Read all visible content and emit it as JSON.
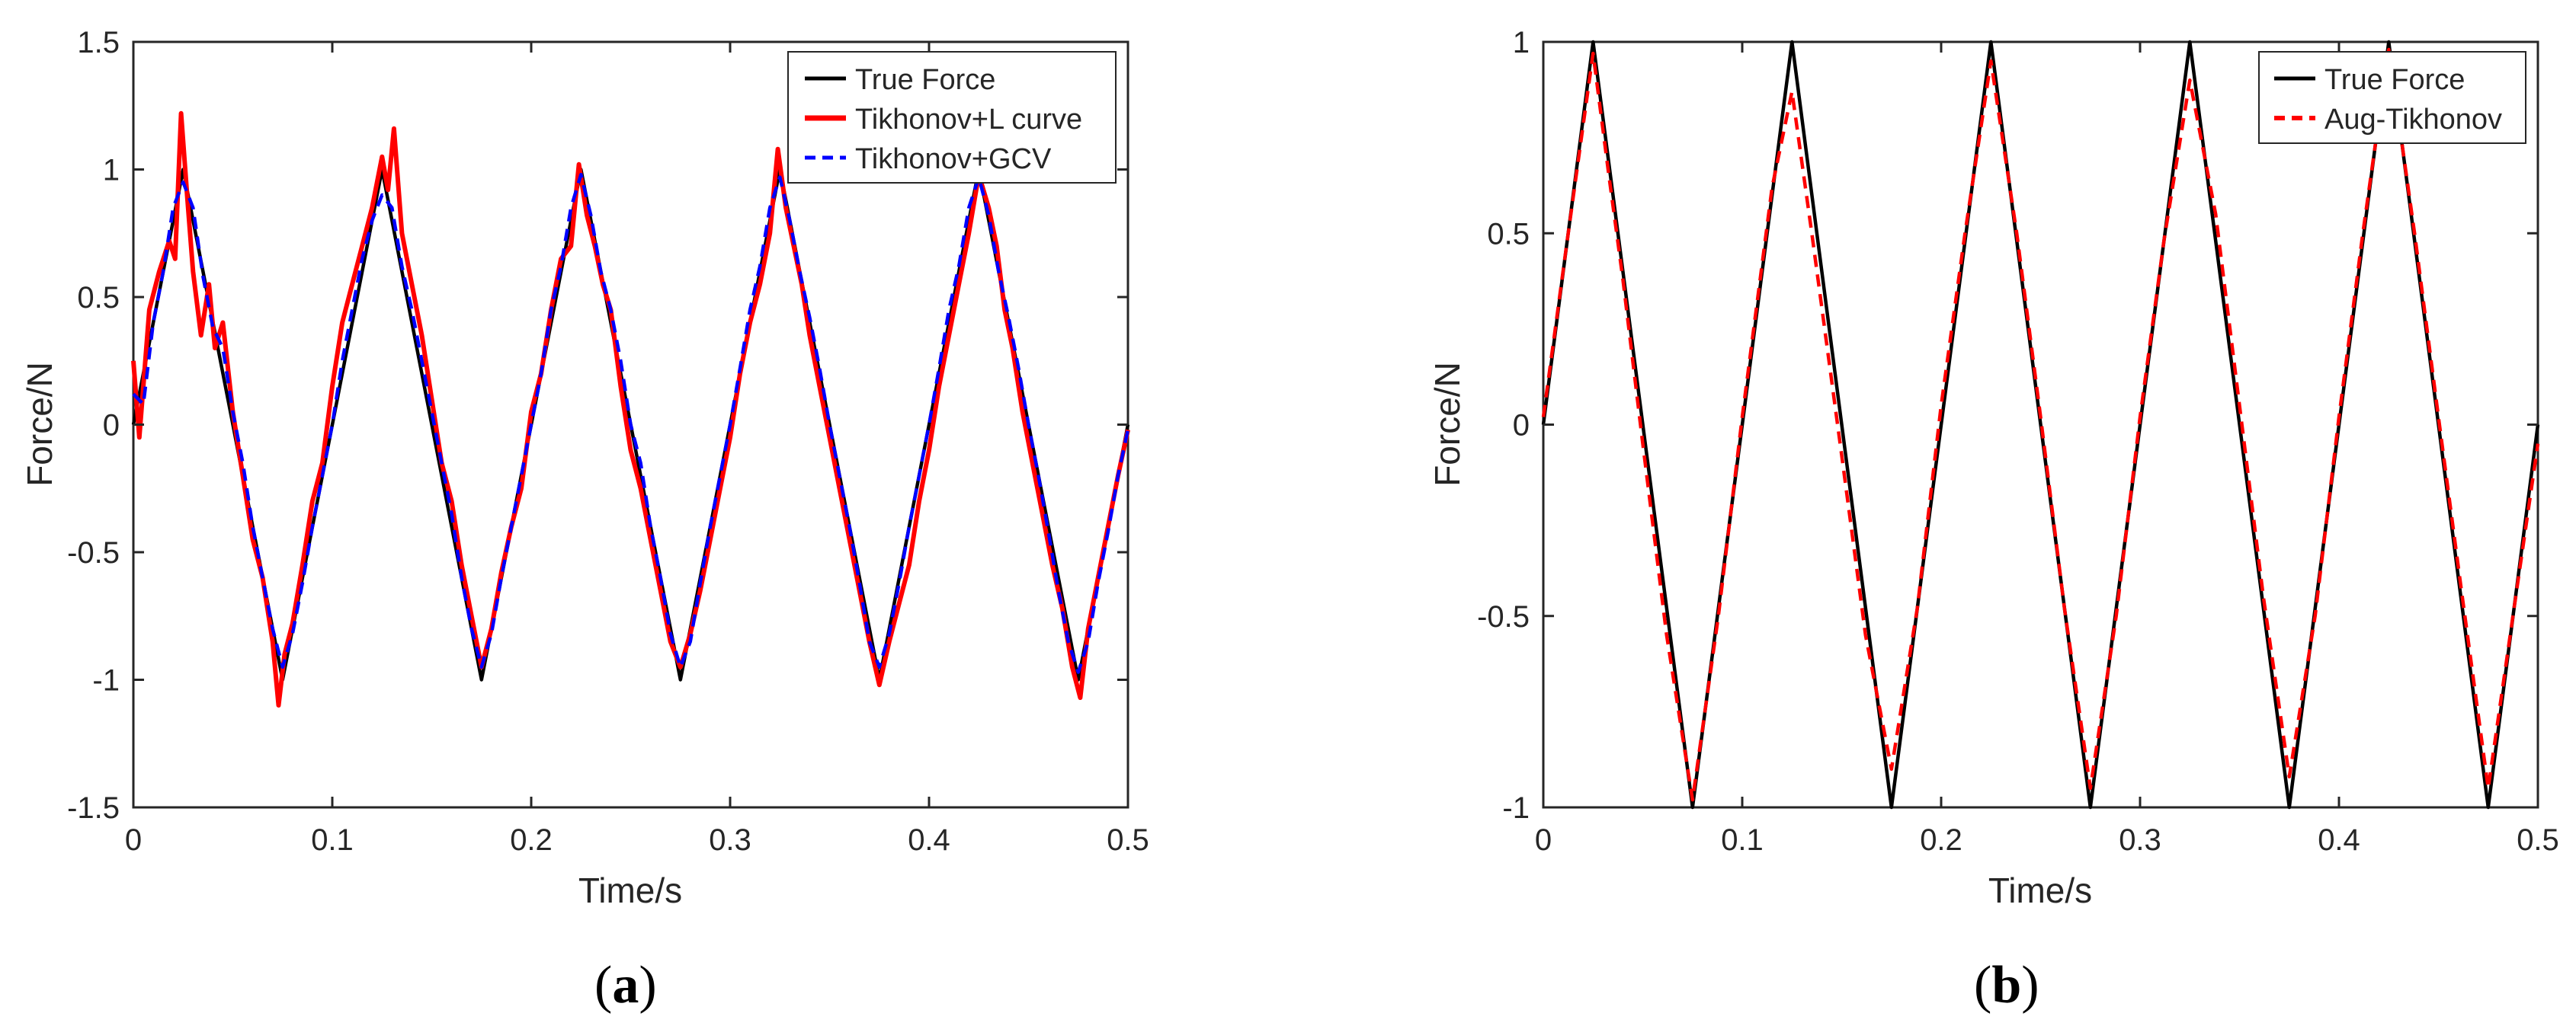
{
  "panels": [
    {
      "caption": "(a)",
      "caption_letter": "a",
      "chart_data": {
        "type": "line",
        "title": "",
        "xlabel": "Time/s",
        "ylabel": "Force/N",
        "xlim": [
          0,
          0.5
        ],
        "ylim": [
          -1.5,
          1.5
        ],
        "xticks": [
          "0",
          "0.1",
          "0.2",
          "0.3",
          "0.4",
          "0.5"
        ],
        "yticks": [
          "-1.5",
          "-1",
          "-0.5",
          "0",
          "0.5",
          "1",
          "1.5"
        ],
        "grid": false,
        "legend_position": "top-right",
        "series": [
          {
            "name": "True Force",
            "color": "#000000",
            "style": "solid",
            "x": [
              0,
              0.025,
              0.075,
              0.125,
              0.175,
              0.225,
              0.275,
              0.325,
              0.375,
              0.425,
              0.475,
              0.5
            ],
            "y": [
              0,
              1,
              -1,
              1,
              -1,
              1,
              -1,
              1,
              -1,
              1,
              -1,
              0
            ]
          },
          {
            "name": "Tikhonov+L curve",
            "color": "#ff0000",
            "style": "solid",
            "x": [
              0,
              0.003,
              0.008,
              0.013,
              0.018,
              0.021,
              0.024,
              0.027,
              0.03,
              0.034,
              0.038,
              0.041,
              0.045,
              0.05,
              0.055,
              0.06,
              0.065,
              0.07,
              0.073,
              0.076,
              0.08,
              0.085,
              0.09,
              0.095,
              0.1,
              0.105,
              0.11,
              0.115,
              0.12,
              0.125,
              0.128,
              0.131,
              0.135,
              0.14,
              0.145,
              0.15,
              0.155,
              0.16,
              0.165,
              0.17,
              0.175,
              0.18,
              0.185,
              0.19,
              0.195,
              0.2,
              0.205,
              0.21,
              0.215,
              0.22,
              0.224,
              0.228,
              0.232,
              0.236,
              0.24,
              0.245,
              0.25,
              0.255,
              0.26,
              0.265,
              0.27,
              0.275,
              0.28,
              0.285,
              0.29,
              0.295,
              0.3,
              0.305,
              0.31,
              0.315,
              0.32,
              0.324,
              0.328,
              0.332,
              0.336,
              0.34,
              0.345,
              0.35,
              0.355,
              0.36,
              0.365,
              0.37,
              0.375,
              0.38,
              0.385,
              0.39,
              0.395,
              0.4,
              0.405,
              0.41,
              0.415,
              0.42,
              0.425,
              0.43,
              0.434,
              0.438,
              0.442,
              0.447,
              0.452,
              0.457,
              0.462,
              0.467,
              0.472,
              0.476,
              0.48,
              0.485,
              0.49,
              0.495,
              0.5
            ],
            "y": [
              0.25,
              -0.05,
              0.45,
              0.6,
              0.72,
              0.65,
              1.22,
              0.9,
              0.6,
              0.35,
              0.55,
              0.3,
              0.4,
              0.05,
              -0.2,
              -0.45,
              -0.6,
              -0.85,
              -1.1,
              -0.9,
              -0.78,
              -0.55,
              -0.3,
              -0.15,
              0.15,
              0.4,
              0.55,
              0.7,
              0.85,
              1.05,
              0.92,
              1.16,
              0.75,
              0.55,
              0.35,
              0.1,
              -0.15,
              -0.3,
              -0.55,
              -0.75,
              -0.95,
              -0.8,
              -0.58,
              -0.4,
              -0.25,
              0.05,
              0.2,
              0.45,
              0.65,
              0.7,
              1.02,
              0.82,
              0.7,
              0.55,
              0.45,
              0.15,
              -0.1,
              -0.25,
              -0.45,
              -0.65,
              -0.85,
              -0.95,
              -0.82,
              -0.65,
              -0.45,
              -0.25,
              -0.05,
              0.2,
              0.4,
              0.55,
              0.75,
              1.08,
              0.85,
              0.7,
              0.55,
              0.35,
              0.15,
              -0.05,
              -0.25,
              -0.45,
              -0.65,
              -0.85,
              -1.02,
              -0.85,
              -0.7,
              -0.55,
              -0.3,
              -0.1,
              0.15,
              0.35,
              0.55,
              0.75,
              0.98,
              0.85,
              0.7,
              0.45,
              0.3,
              0.05,
              -0.15,
              -0.35,
              -0.55,
              -0.72,
              -0.95,
              -1.07,
              -0.8,
              -0.6,
              -0.4,
              -0.2,
              -0.02
            ]
          },
          {
            "name": "Tikhonov+GCV",
            "color": "#0000ff",
            "style": "dashed",
            "x": [
              0,
              0.005,
              0.01,
              0.015,
              0.02,
              0.025,
              0.03,
              0.035,
              0.04,
              0.045,
              0.05,
              0.055,
              0.06,
              0.065,
              0.07,
              0.075,
              0.08,
              0.085,
              0.09,
              0.095,
              0.1,
              0.105,
              0.11,
              0.115,
              0.12,
              0.125,
              0.13,
              0.135,
              0.14,
              0.145,
              0.15,
              0.155,
              0.16,
              0.165,
              0.17,
              0.175,
              0.18,
              0.185,
              0.19,
              0.195,
              0.2,
              0.205,
              0.21,
              0.215,
              0.22,
              0.225,
              0.23,
              0.235,
              0.24,
              0.245,
              0.25,
              0.255,
              0.26,
              0.265,
              0.27,
              0.275,
              0.28,
              0.285,
              0.29,
              0.295,
              0.3,
              0.305,
              0.31,
              0.315,
              0.32,
              0.325,
              0.33,
              0.335,
              0.34,
              0.345,
              0.35,
              0.355,
              0.36,
              0.365,
              0.37,
              0.375,
              0.38,
              0.385,
              0.39,
              0.395,
              0.4,
              0.405,
              0.41,
              0.415,
              0.42,
              0.425,
              0.43,
              0.435,
              0.44,
              0.445,
              0.45,
              0.455,
              0.46,
              0.465,
              0.47,
              0.475,
              0.48,
              0.485,
              0.49,
              0.495,
              0.5
            ],
            "y": [
              0.12,
              0.08,
              0.4,
              0.6,
              0.85,
              0.95,
              0.85,
              0.58,
              0.38,
              0.3,
              0.05,
              -0.15,
              -0.4,
              -0.6,
              -0.8,
              -0.95,
              -0.82,
              -0.62,
              -0.4,
              -0.2,
              0.0,
              0.25,
              0.45,
              0.65,
              0.8,
              0.9,
              0.85,
              0.62,
              0.45,
              0.25,
              0.05,
              -0.15,
              -0.35,
              -0.6,
              -0.8,
              -0.95,
              -0.82,
              -0.6,
              -0.4,
              -0.2,
              0.0,
              0.2,
              0.45,
              0.62,
              0.85,
              0.98,
              0.82,
              0.6,
              0.45,
              0.25,
              0.0,
              -0.15,
              -0.4,
              -0.6,
              -0.82,
              -0.95,
              -0.85,
              -0.62,
              -0.4,
              -0.2,
              0.0,
              0.22,
              0.45,
              0.62,
              0.85,
              0.97,
              0.8,
              0.6,
              0.42,
              0.22,
              0.0,
              -0.2,
              -0.4,
              -0.62,
              -0.85,
              -0.95,
              -0.82,
              -0.62,
              -0.4,
              -0.2,
              0.0,
              0.22,
              0.45,
              0.62,
              0.85,
              0.97,
              0.82,
              0.6,
              0.42,
              0.22,
              0.0,
              -0.2,
              -0.42,
              -0.65,
              -0.85,
              -0.97,
              -0.85,
              -0.62,
              -0.42,
              -0.2,
              -0.02
            ]
          }
        ]
      }
    },
    {
      "caption": "(b)",
      "caption_letter": "b",
      "chart_data": {
        "type": "line",
        "title": "",
        "xlabel": "Time/s",
        "ylabel": "Force/N",
        "xlim": [
          0,
          0.5
        ],
        "ylim": [
          -1,
          1
        ],
        "xticks": [
          "0",
          "0.1",
          "0.2",
          "0.3",
          "0.4",
          "0.5"
        ],
        "yticks": [
          "-1",
          "-0.5",
          "0",
          "0.5",
          "1"
        ],
        "grid": false,
        "legend_position": "top-right",
        "series": [
          {
            "name": "True Force",
            "color": "#000000",
            "style": "solid",
            "x": [
              0,
              0.025,
              0.075,
              0.125,
              0.175,
              0.225,
              0.275,
              0.325,
              0.375,
              0.425,
              0.475,
              0.5
            ],
            "y": [
              0,
              1,
              -1,
              1,
              -1,
              1,
              -1,
              1,
              -1,
              1,
              -1,
              0
            ]
          },
          {
            "name": "Aug-Tikhonov",
            "color": "#ff0000",
            "style": "dashed",
            "x": [
              0,
              0.012,
              0.025,
              0.033,
              0.04,
              0.05,
              0.062,
              0.075,
              0.088,
              0.1,
              0.115,
              0.125,
              0.135,
              0.15,
              0.162,
              0.175,
              0.188,
              0.2,
              0.212,
              0.225,
              0.238,
              0.25,
              0.262,
              0.275,
              0.288,
              0.3,
              0.312,
              0.325,
              0.338,
              0.35,
              0.362,
              0.375,
              0.388,
              0.4,
              0.412,
              0.425,
              0.438,
              0.45,
              0.462,
              0.475,
              0.488,
              0.5
            ],
            "y": [
              0.02,
              0.48,
              0.97,
              0.65,
              0.38,
              -0.05,
              -0.55,
              -0.98,
              -0.5,
              0.02,
              0.62,
              0.87,
              0.5,
              -0.08,
              -0.55,
              -0.9,
              -0.48,
              0.05,
              0.5,
              0.95,
              0.5,
              0.02,
              -0.48,
              -0.95,
              -0.5,
              0.02,
              0.48,
              0.9,
              0.55,
              0.05,
              -0.45,
              -0.92,
              -0.5,
              0.02,
              0.5,
              0.98,
              0.5,
              0.02,
              -0.45,
              -0.95,
              -0.48,
              -0.05
            ]
          }
        ]
      }
    }
  ]
}
